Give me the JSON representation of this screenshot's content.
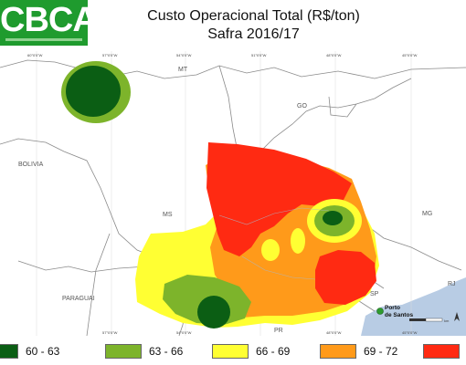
{
  "logo": {
    "text": "CBCA",
    "brand_color": "#1f9b2e"
  },
  "title": {
    "line1": "Custo Operacional Total (R$/ton)",
    "line2": "Safra 2016/17"
  },
  "map": {
    "region_labels": {
      "mt": "MT",
      "go": "GO",
      "bolivia": "BOLIVIA",
      "ms": "MS",
      "mg": "MG",
      "paraguai": "PARAGUAI",
      "sp": "SP",
      "rj": "RJ",
      "pr": "PR"
    },
    "port_label_line1": "Porto",
    "port_label_line2": "de Santos",
    "port_marker_color": "#2e9b2e",
    "grid_ticks_top": [
      "60°0'0\"W",
      "57°0'0\"W",
      "54°0'0\"W",
      "51°0'0\"W",
      "48°0'0\"W",
      "45°0'0\"W"
    ],
    "grid_ticks_bottom": [
      "57°0'0\"W",
      "54°0'0\"W",
      "48°0'0\"W",
      "45°0'0\"W"
    ],
    "ocean_color": "#b8cce4",
    "scale_label": "km"
  },
  "legend": [
    {
      "label": "60 - 63",
      "color": "#0b5e14"
    },
    {
      "label": "63 - 66",
      "color": "#7db42b"
    },
    {
      "label": "66 - 69",
      "color": "#ffff33"
    },
    {
      "label": "69 - 72",
      "color": "#ff9a1a"
    },
    {
      "label": "> ",
      "color": "#ff2a12"
    }
  ]
}
